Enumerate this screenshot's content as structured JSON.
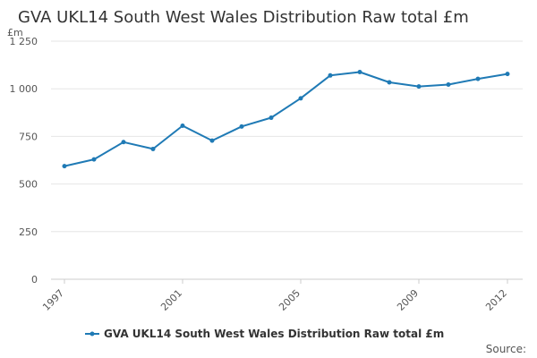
{
  "chart_data": {
    "type": "line",
    "title": "GVA UKL14 South West Wales Distribution Raw total £m",
    "unit_label": "£m",
    "xlabel": "",
    "ylabel": "£m",
    "x": [
      1997,
      1998,
      1999,
      2000,
      2001,
      2002,
      2003,
      2004,
      2005,
      2006,
      2007,
      2008,
      2009,
      2010,
      2011,
      2012
    ],
    "x_tick_labels": [
      "1997",
      "2001",
      "2005",
      "2009",
      "2012"
    ],
    "y_ticks": [
      0,
      250,
      500,
      750,
      1000,
      1250
    ],
    "y_tick_labels": [
      "0",
      "250",
      "500",
      "750",
      "1 000",
      "1 250"
    ],
    "ylim": [
      0,
      1250
    ],
    "grid": true,
    "legend_position": "bottom-center",
    "series": [
      {
        "name": "GVA UKL14 South West Wales Distribution Raw total £m",
        "color": "#1f7ab5",
        "values": [
          594,
          629,
          720,
          684,
          806,
          728,
          802,
          848,
          950,
          1070,
          1088,
          1034,
          1012,
          1022,
          1052,
          1078
        ]
      }
    ],
    "source_text": "Source:"
  }
}
